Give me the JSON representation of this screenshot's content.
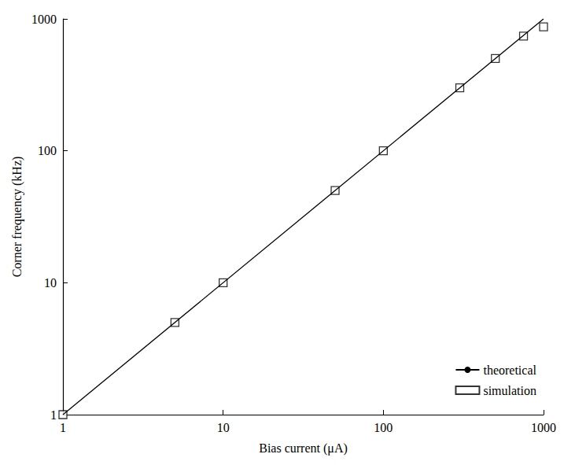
{
  "chart_data": {
    "type": "scatter",
    "x_label": "Bias current (μA)",
    "y_label": "Corner frequency (kHz)",
    "log": true,
    "grid": false,
    "legend": "bottom-right",
    "xlim": [
      1,
      1000
    ],
    "xticks": [
      1,
      10,
      100,
      1000
    ],
    "ylim": [
      1,
      1000
    ],
    "yticks": [
      1,
      10,
      100,
      1000
    ],
    "series": [
      {
        "name": "theoretical",
        "type": "line",
        "color": "#000000",
        "line_style": "solid",
        "x": [
          1,
          1000
        ],
        "values": [
          1,
          1000
        ]
      },
      {
        "name": "simulation",
        "type": "scatter",
        "color": "#000000",
        "marker": "open_square",
        "x": [
          1,
          5,
          10,
          50,
          100,
          300,
          500,
          750,
          1000
        ],
        "values": [
          1,
          5,
          10,
          50,
          100,
          300,
          500,
          740,
          870
        ]
      }
    ]
  }
}
